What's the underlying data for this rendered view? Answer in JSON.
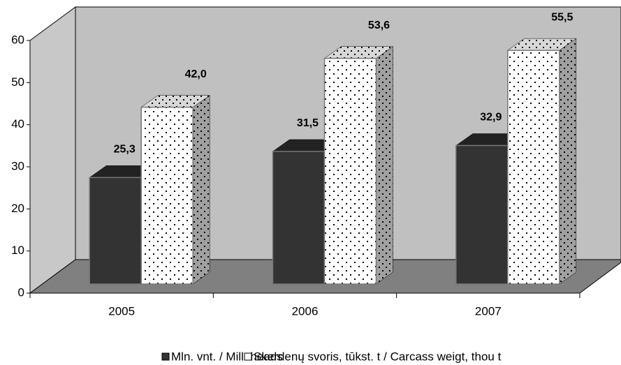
{
  "chart_data": {
    "type": "bar3d",
    "categories": [
      "2005",
      "2006",
      "2007"
    ],
    "series": [
      {
        "name": "Mln. vnt. / Mill. heads",
        "color": "#333333",
        "values": [
          25.3,
          31.5,
          32.9
        ],
        "value_labels": [
          "25,3",
          "31,5",
          "32,9"
        ]
      },
      {
        "name": "Skerdenų svoris, tūkst.  t / Carcass weigt, thou t",
        "color": "#ffffff",
        "values": [
          42.0,
          53.6,
          55.5
        ],
        "value_labels": [
          "42,0",
          "53,6",
          "55,5"
        ]
      }
    ],
    "ylim": [
      0,
      60
    ],
    "yticks": [
      0,
      10,
      20,
      30,
      40,
      50,
      60
    ],
    "legend": "bottom"
  }
}
